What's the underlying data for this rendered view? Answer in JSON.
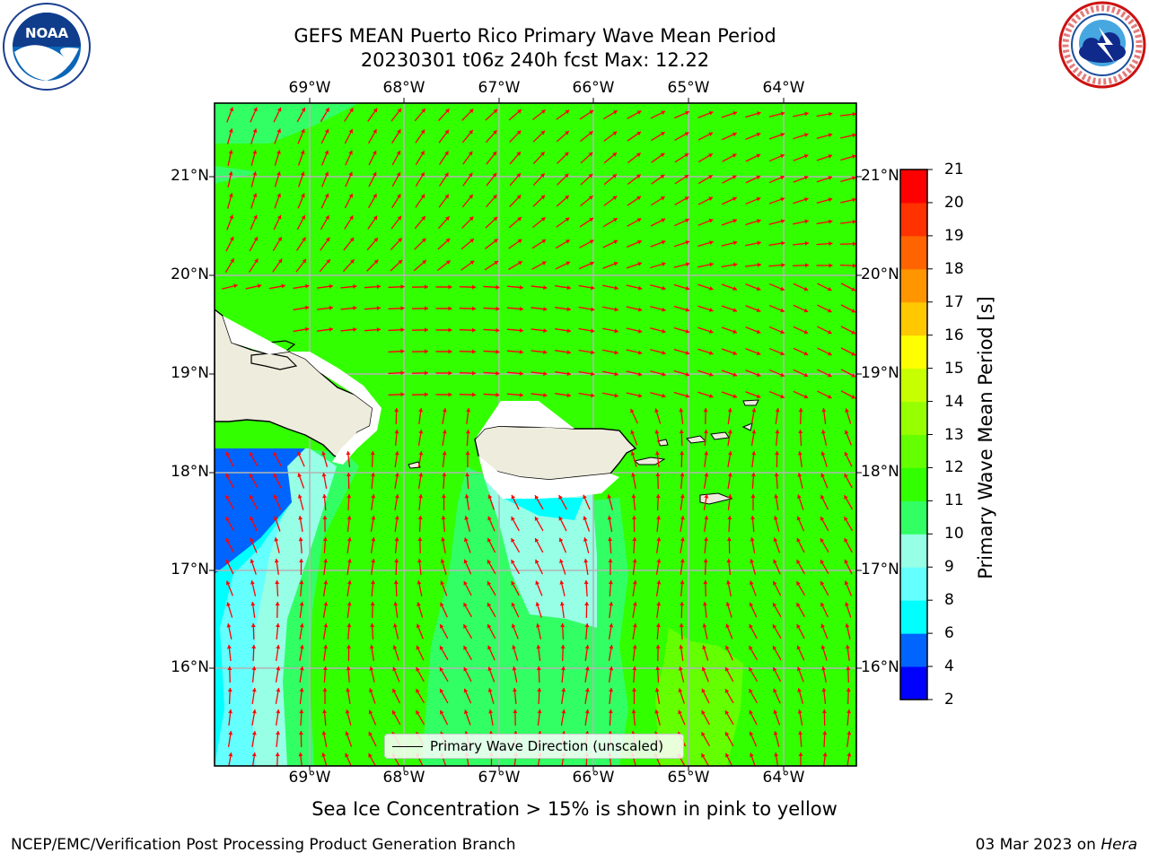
{
  "title": {
    "line1": "GEFS MEAN Puerto Rico Primary Wave Mean Period",
    "line2": "20230301 t06z 240h fcst   Max: 12.22"
  },
  "logos": {
    "left": "noaa-logo",
    "right": "nws-logo"
  },
  "map": {
    "lon_ticks": [
      "69°W",
      "68°W",
      "67°W",
      "66°W",
      "65°W",
      "64°W"
    ],
    "lat_ticks": [
      "21°N",
      "20°N",
      "19°N",
      "18°N",
      "17°N",
      "16°N"
    ],
    "legend": "Primary Wave Direction (unscaled)",
    "colors": {
      "land": "#eeecdc",
      "arrow": "#ff0000",
      "grid": "#b4b4b4"
    }
  },
  "colorbar": {
    "label": "Primary Wave Mean Period [s]",
    "ticks": [
      "21",
      "20",
      "19",
      "18",
      "17",
      "16",
      "15",
      "14",
      "13",
      "12",
      "11",
      "10",
      "9",
      "8",
      "6",
      "4",
      "2"
    ],
    "colors": [
      "#0000ff",
      "#0064ff",
      "#00ffff",
      "#64ffff",
      "#96ffe6",
      "#32ff64",
      "#32ff00",
      "#64ff00",
      "#96ff00",
      "#c8ff00",
      "#ffff00",
      "#ffc800",
      "#ff9600",
      "#ff6400",
      "#ff3200",
      "#ff0000"
    ]
  },
  "caption": "Sea Ice Concentration > 15% is shown in pink to yellow",
  "footer": {
    "left": "NCEP/EMC/Verification Post Processing Product Generation Branch",
    "date": "03 Mar 2023 on ",
    "machine": "Hera"
  }
}
